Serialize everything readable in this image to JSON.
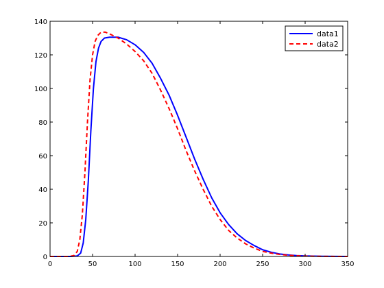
{
  "chart_data": {
    "type": "line",
    "title": "",
    "xlabel": "",
    "ylabel": "",
    "xlim": [
      0,
      350
    ],
    "ylim": [
      0,
      140
    ],
    "x_ticks": [
      0,
      50,
      100,
      150,
      200,
      250,
      300,
      350
    ],
    "y_ticks": [
      0,
      20,
      40,
      60,
      80,
      100,
      120,
      140
    ],
    "grid": false,
    "legend_position": "top-right",
    "series": [
      {
        "name": "data1",
        "color": "#0000ff",
        "style": "solid",
        "points": [
          [
            0,
            0
          ],
          [
            25,
            0
          ],
          [
            32,
            0.3
          ],
          [
            36,
            2
          ],
          [
            39,
            8
          ],
          [
            42,
            22
          ],
          [
            45,
            45
          ],
          [
            48,
            75
          ],
          [
            51,
            100
          ],
          [
            54,
            116
          ],
          [
            57,
            124
          ],
          [
            60,
            128
          ],
          [
            64,
            130
          ],
          [
            70,
            130.5
          ],
          [
            80,
            130.5
          ],
          [
            90,
            129
          ],
          [
            100,
            126
          ],
          [
            110,
            121.5
          ],
          [
            120,
            115
          ],
          [
            130,
            106
          ],
          [
            140,
            96
          ],
          [
            150,
            84
          ],
          [
            160,
            71
          ],
          [
            170,
            58
          ],
          [
            180,
            46
          ],
          [
            190,
            35
          ],
          [
            200,
            26
          ],
          [
            210,
            19
          ],
          [
            220,
            13.5
          ],
          [
            230,
            9.5
          ],
          [
            240,
            6.5
          ],
          [
            250,
            4
          ],
          [
            260,
            2.5
          ],
          [
            270,
            1.5
          ],
          [
            280,
            0.9
          ],
          [
            290,
            0.5
          ],
          [
            300,
            0.3
          ],
          [
            320,
            0.1
          ],
          [
            350,
            0
          ]
        ]
      },
      {
        "name": "data2",
        "color": "#ff0000",
        "style": "dashed",
        "points": [
          [
            0,
            0
          ],
          [
            22,
            0
          ],
          [
            28,
            0.5
          ],
          [
            32,
            3
          ],
          [
            35,
            10
          ],
          [
            38,
            25
          ],
          [
            41,
            50
          ],
          [
            44,
            80
          ],
          [
            47,
            105
          ],
          [
            50,
            120
          ],
          [
            53,
            128
          ],
          [
            56,
            131.5
          ],
          [
            60,
            133.5
          ],
          [
            65,
            133.5
          ],
          [
            70,
            132.5
          ],
          [
            80,
            130
          ],
          [
            90,
            126.5
          ],
          [
            100,
            122
          ],
          [
            110,
            116.5
          ],
          [
            120,
            109
          ],
          [
            130,
            99
          ],
          [
            140,
            88
          ],
          [
            150,
            76
          ],
          [
            160,
            63
          ],
          [
            170,
            51
          ],
          [
            180,
            40
          ],
          [
            190,
            30
          ],
          [
            200,
            22
          ],
          [
            210,
            15.5
          ],
          [
            220,
            11
          ],
          [
            230,
            7.5
          ],
          [
            240,
            5
          ],
          [
            250,
            3
          ],
          [
            260,
            2
          ],
          [
            270,
            1.2
          ],
          [
            280,
            0.7
          ],
          [
            290,
            0.4
          ],
          [
            300,
            0.2
          ],
          [
            320,
            0.05
          ],
          [
            350,
            0
          ]
        ]
      }
    ]
  }
}
